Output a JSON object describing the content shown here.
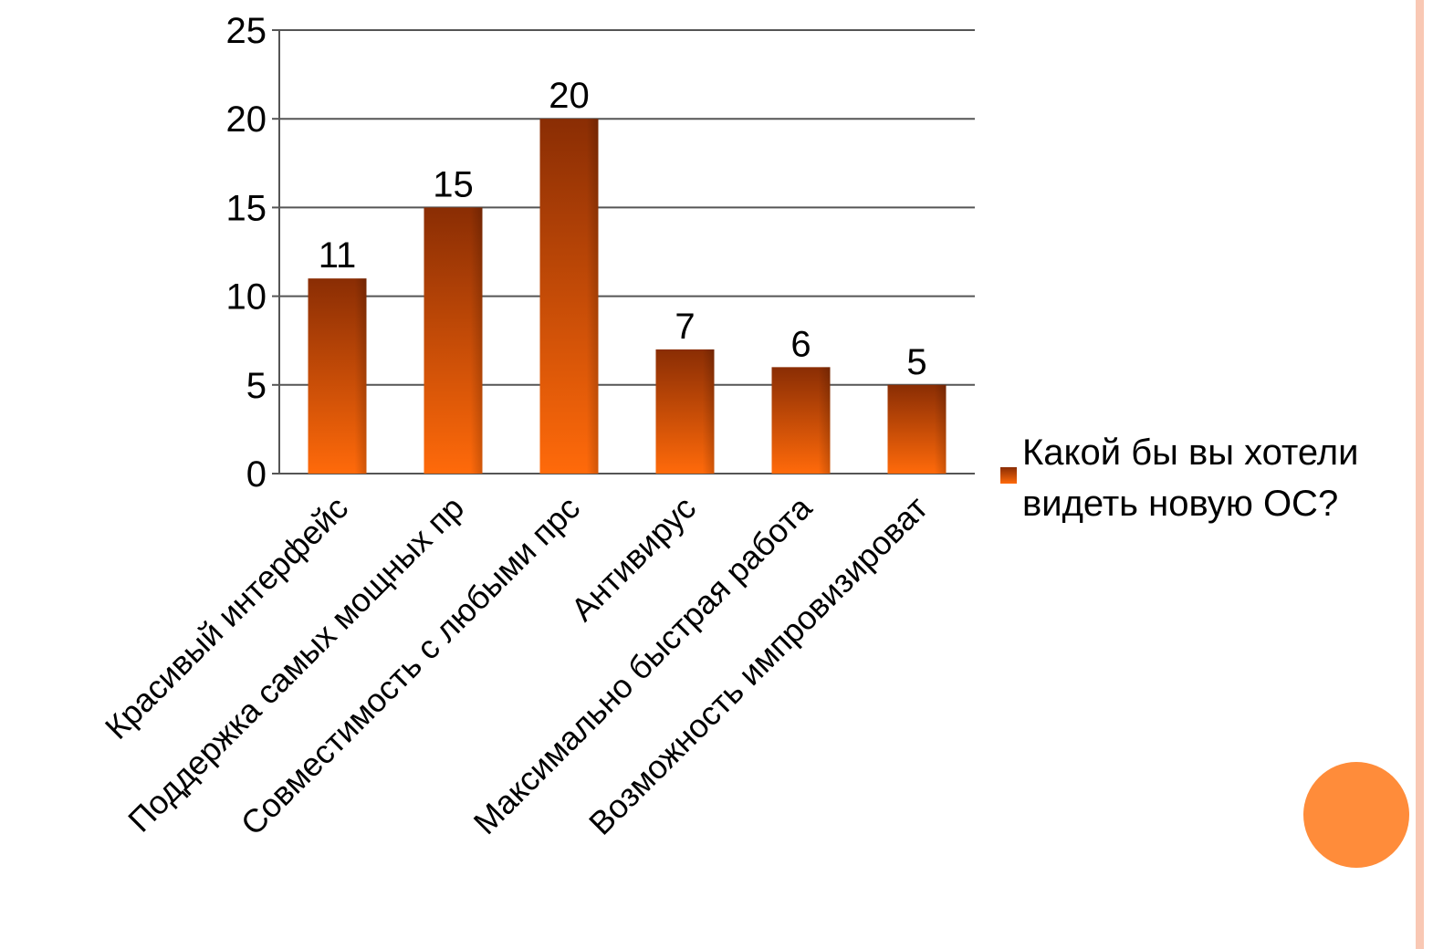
{
  "chart_data": {
    "type": "bar",
    "categories": [
      "Красивый интерфейс",
      "Поддержка самых мощных пр",
      "Совместимость с любыми прс",
      "Антивирус",
      "Максимально быстрая работа",
      "Возможность импровизироват"
    ],
    "series": [
      {
        "name": "Какой бы вы хотели видеть новую ОС?",
        "values": [
          11,
          15,
          20,
          7,
          6,
          5
        ]
      }
    ],
    "data_labels": [
      "11",
      "15",
      "20",
      "7",
      "6",
      "5"
    ],
    "y_ticks": [
      "0",
      "5",
      "10",
      "15",
      "20",
      "25"
    ],
    "ylim": [
      0,
      25
    ],
    "grid": true,
    "legend_position": "right",
    "bar_color_top": "#8a2d04",
    "bar_color_bottom": "#ff6a0a"
  },
  "legend": {
    "text": "Какой бы вы хотели видеть новую ОС?"
  },
  "decor": {
    "border_color": "#f9c8b4",
    "circle_color": "#ff8c3a"
  }
}
